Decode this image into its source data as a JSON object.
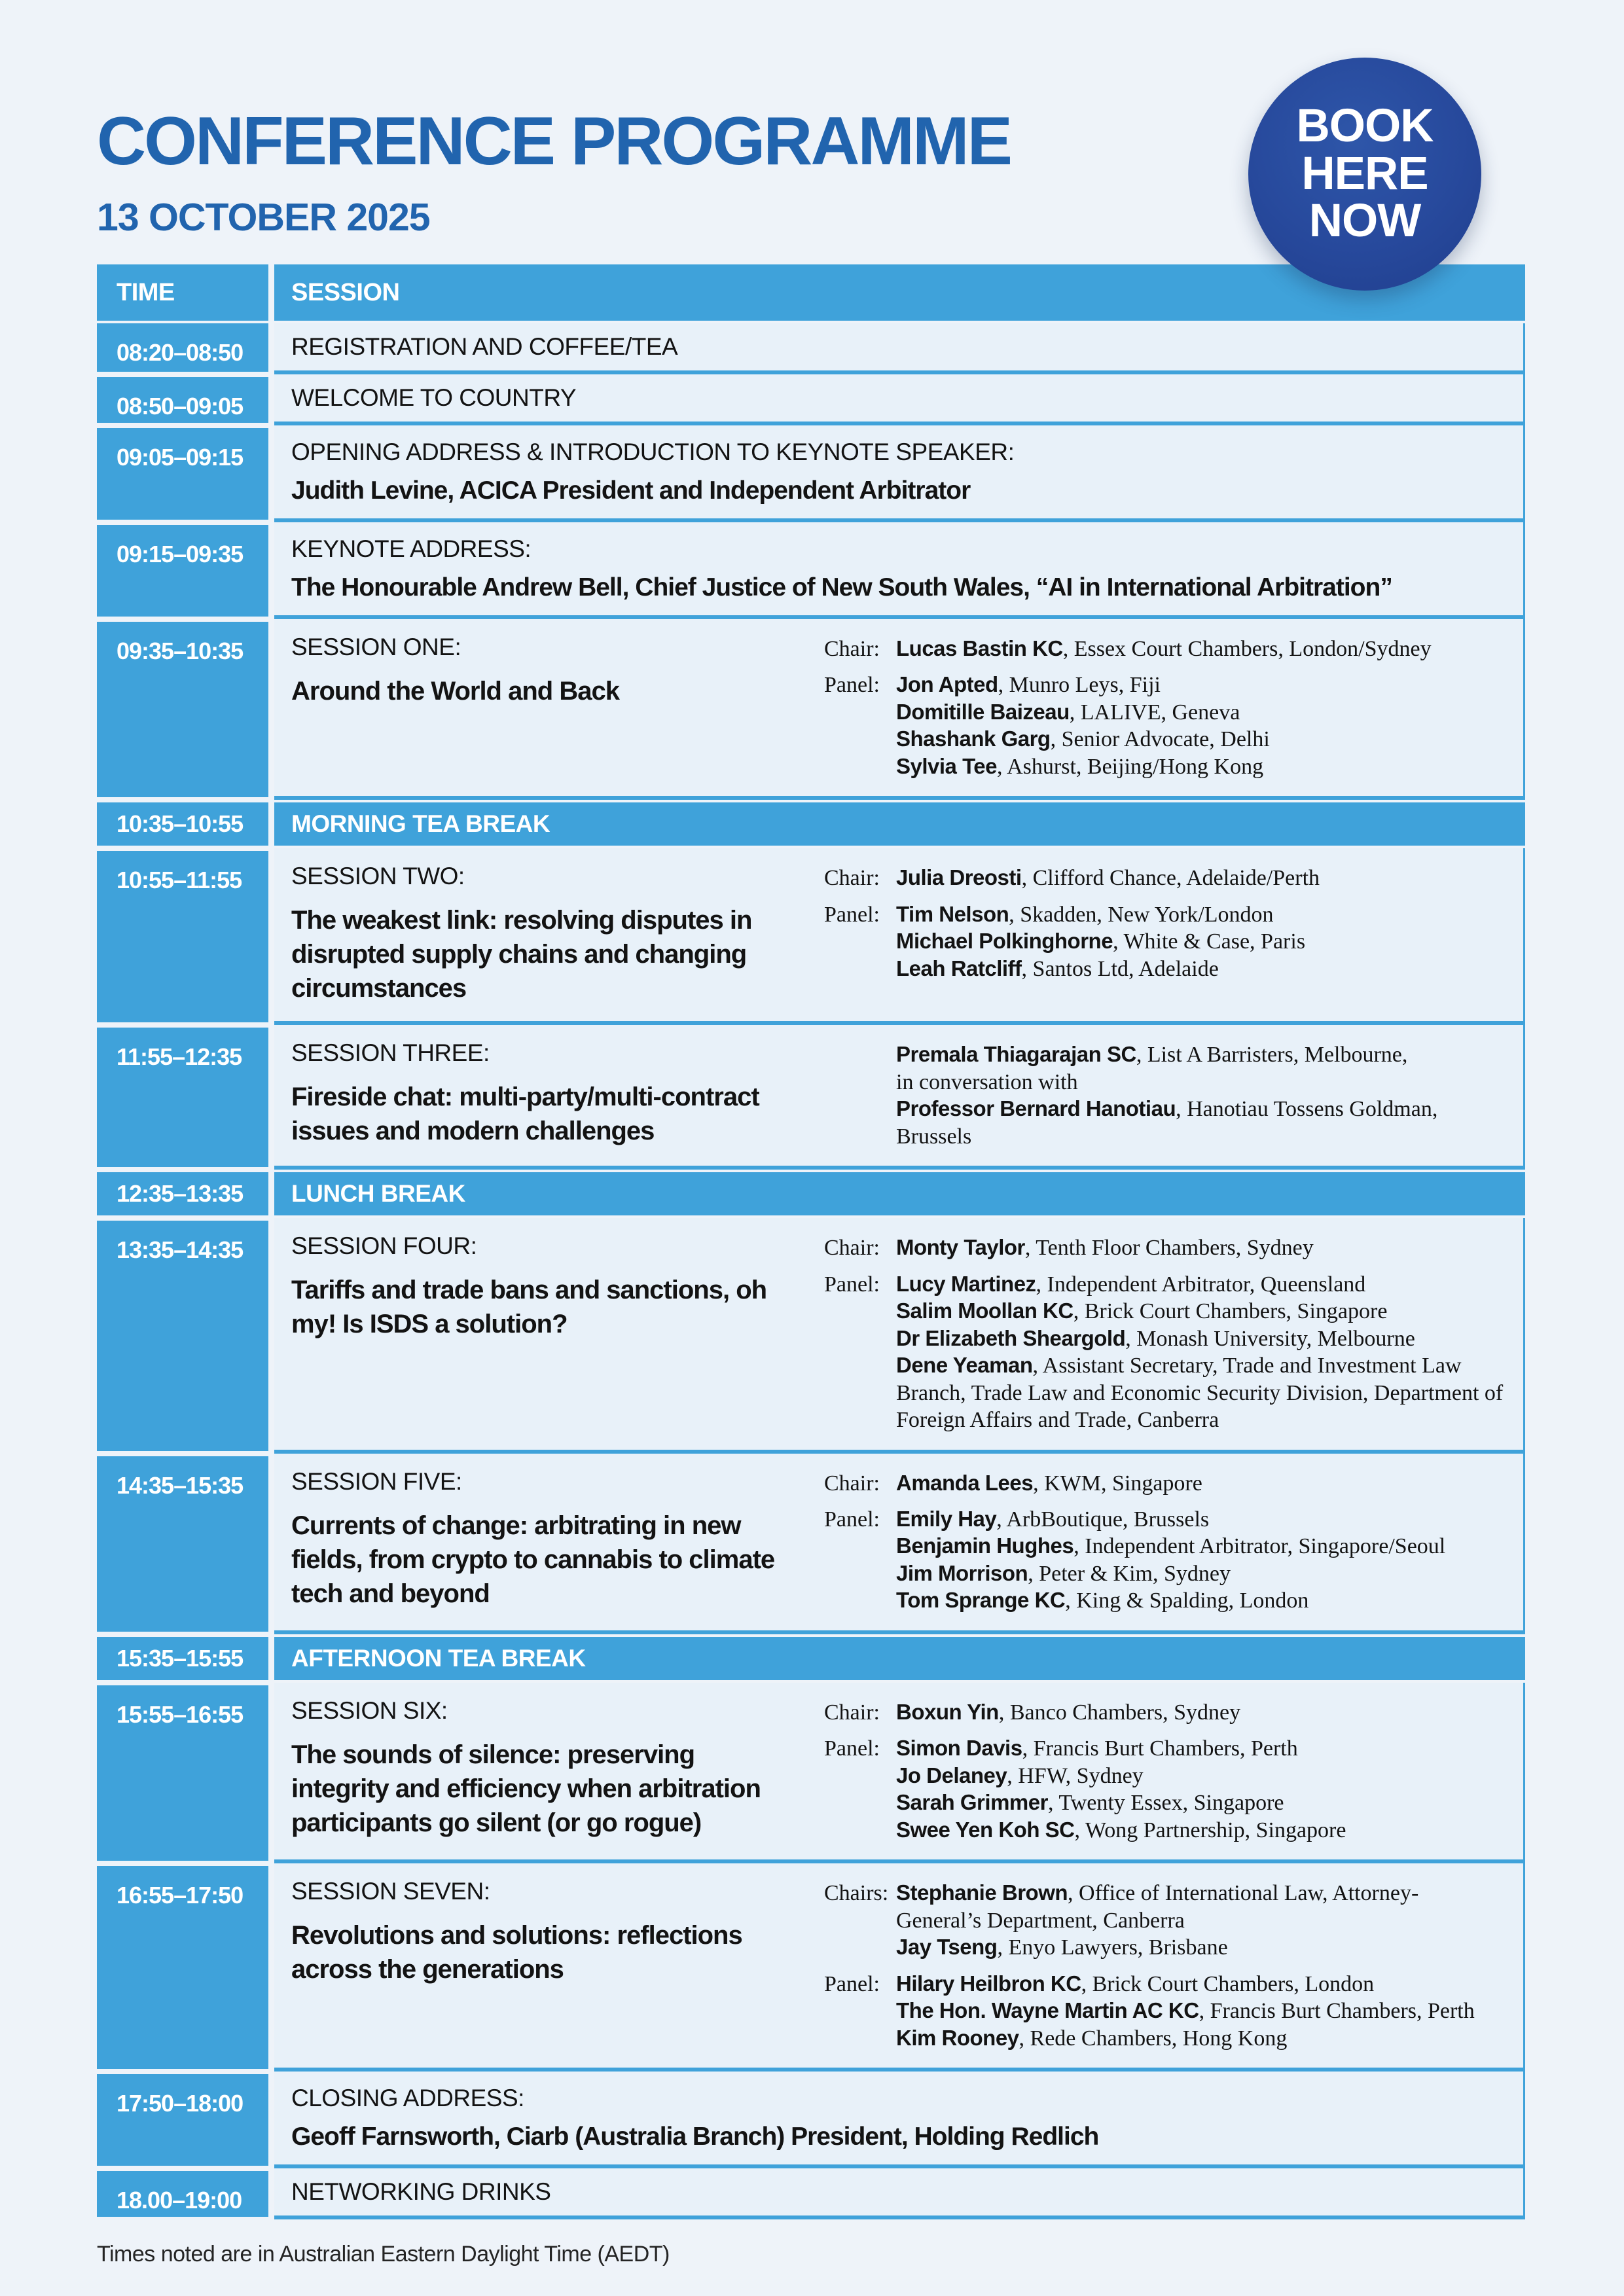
{
  "header": {
    "title": "CONFERENCE PROGRAMME",
    "date": "13 OCTOBER 2025",
    "badge_lines": [
      "BOOK",
      "HERE",
      "NOW"
    ]
  },
  "table": {
    "columns": [
      "TIME",
      "SESSION"
    ]
  },
  "rows": [
    {
      "type": "item",
      "time": "08:20–08:50",
      "label": "REGISTRATION AND COFFEE/TEA"
    },
    {
      "type": "item",
      "time": "08:50–09:05",
      "label": "WELCOME TO COUNTRY"
    },
    {
      "type": "item2",
      "time": "09:05–09:15",
      "label": "OPENING ADDRESS & INTRODUCTION TO KEYNOTE SPEAKER:",
      "bold": "Judith Levine, ACICA President and Independent Arbitrator"
    },
    {
      "type": "item2",
      "time": "09:15–09:35",
      "label": "KEYNOTE ADDRESS:",
      "bold": "The Honourable Andrew Bell, Chief Justice of New South Wales, “AI in International Arbitration”"
    },
    {
      "type": "session",
      "time": "09:35–10:35",
      "label": "SESSION ONE:",
      "title": "Around the World and Back",
      "groups": [
        {
          "label": "Chair:",
          "entries": [
            [
              {
                "b": "Lucas Bastin KC"
              },
              {
                "t": ", Essex Court Chambers, London/Sydney"
              }
            ]
          ]
        },
        {
          "label": "Panel:",
          "entries": [
            [
              {
                "b": "Jon Apted"
              },
              {
                "t": ", Munro Leys, Fiji"
              }
            ],
            [
              {
                "b": "Domitille Baizeau"
              },
              {
                "t": ", LALIVE, Geneva"
              }
            ],
            [
              {
                "b": "Shashank Garg"
              },
              {
                "t": ", Senior Advocate, Delhi"
              }
            ],
            [
              {
                "b": "Sylvia Tee"
              },
              {
                "t": ", Ashurst, Beijing/Hong Kong"
              }
            ]
          ]
        }
      ]
    },
    {
      "type": "break",
      "time": "10:35–10:55",
      "label": "MORNING TEA BREAK"
    },
    {
      "type": "session",
      "time": "10:55–11:55",
      "label": "SESSION TWO:",
      "title": "The weakest link: resolving disputes in disrupted supply chains and changing circumstances",
      "groups": [
        {
          "label": "Chair:",
          "entries": [
            [
              {
                "b": "Julia Dreosti"
              },
              {
                "t": ", Clifford Chance, Adelaide/Perth"
              }
            ]
          ]
        },
        {
          "label": "Panel:",
          "entries": [
            [
              {
                "b": "Tim Nelson"
              },
              {
                "t": ", Skadden, New York/London"
              }
            ],
            [
              {
                "b": "Michael Polkinghorne"
              },
              {
                "t": ", White & Case, Paris"
              }
            ],
            [
              {
                "b": "Leah Ratcliff"
              },
              {
                "t": ", Santos Ltd, Adelaide"
              }
            ]
          ]
        }
      ]
    },
    {
      "type": "session",
      "time": "11:55–12:35",
      "label": "SESSION THREE:",
      "title": "Fireside chat: multi-party/multi-contract issues and modern challenges",
      "groups": [
        {
          "label": "",
          "entries": [
            [
              {
                "b": "Premala Thiagarajan SC"
              },
              {
                "t": ", List A Barristers, Melbourne,"
              }
            ],
            [
              {
                "t": "in conversation with"
              }
            ],
            [
              {
                "b": "Professor Bernard Hanotiau"
              },
              {
                "t": ", Hanotiau Tossens Goldman, Brussels"
              }
            ]
          ]
        }
      ]
    },
    {
      "type": "break",
      "time": "12:35–13:35",
      "label": "LUNCH BREAK"
    },
    {
      "type": "session",
      "time": "13:35–14:35",
      "label": "SESSION FOUR:",
      "title": "Tariffs and trade bans and sanctions, oh my! Is ISDS a solution?",
      "groups": [
        {
          "label": "Chair:",
          "entries": [
            [
              {
                "b": "Monty Taylor"
              },
              {
                "t": ", Tenth Floor Chambers, Sydney"
              }
            ]
          ]
        },
        {
          "label": "Panel:",
          "entries": [
            [
              {
                "b": "Lucy Martinez"
              },
              {
                "t": ", Independent Arbitrator, Queensland"
              }
            ],
            [
              {
                "b": "Salim Moollan KC"
              },
              {
                "t": ", Brick Court Chambers, Singapore"
              }
            ],
            [
              {
                "b": "Dr Elizabeth Sheargold"
              },
              {
                "t": ", Monash University, Melbourne"
              }
            ],
            [
              {
                "b": "Dene Yeaman"
              },
              {
                "t": ", Assistant Secretary, Trade and Investment Law Branch, Trade Law and Economic Security Division, Department of Foreign Affairs and Trade, Canberra"
              }
            ]
          ]
        }
      ]
    },
    {
      "type": "session",
      "time": "14:35–15:35",
      "label": "SESSION FIVE:",
      "title": "Currents of change: arbitrating in new fields, from crypto to cannabis to climate tech and beyond",
      "groups": [
        {
          "label": "Chair:",
          "entries": [
            [
              {
                "b": "Amanda Lees"
              },
              {
                "t": ", KWM, Singapore"
              }
            ]
          ]
        },
        {
          "label": "Panel:",
          "entries": [
            [
              {
                "b": "Emily Hay"
              },
              {
                "t": ", ArbBoutique, Brussels"
              }
            ],
            [
              {
                "b": "Benjamin Hughes"
              },
              {
                "t": ", Independent Arbitrator, Singapore/Seoul"
              }
            ],
            [
              {
                "b": "Jim Morrison"
              },
              {
                "t": ", Peter & Kim, Sydney"
              }
            ],
            [
              {
                "b": "Tom Sprange KC"
              },
              {
                "t": ", King & Spalding, London"
              }
            ]
          ]
        }
      ]
    },
    {
      "type": "break",
      "time": "15:35–15:55",
      "label": "AFTERNOON TEA BREAK"
    },
    {
      "type": "session",
      "time": "15:55–16:55",
      "label": "SESSION SIX:",
      "title": "The sounds of silence: preserving integrity and efficiency when arbitration participants go silent (or go rogue)",
      "groups": [
        {
          "label": "Chair:",
          "entries": [
            [
              {
                "b": "Boxun Yin"
              },
              {
                "t": ", Banco Chambers, Sydney"
              }
            ]
          ]
        },
        {
          "label": "Panel:",
          "entries": [
            [
              {
                "b": "Simon Davis"
              },
              {
                "t": ", Francis Burt Chambers, Perth"
              }
            ],
            [
              {
                "b": "Jo Delaney"
              },
              {
                "t": ", HFW, Sydney"
              }
            ],
            [
              {
                "b": "Sarah Grimmer"
              },
              {
                "t": ", Twenty Essex, Singapore"
              }
            ],
            [
              {
                "b": "Swee Yen Koh SC"
              },
              {
                "t": ", Wong Partnership, Singapore"
              }
            ]
          ]
        }
      ]
    },
    {
      "type": "session",
      "time": "16:55–17:50",
      "label": "SESSION SEVEN:",
      "title": "Revolutions and solutions: reflections across the generations",
      "groups": [
        {
          "label": "Chairs:",
          "entries": [
            [
              {
                "b": "Stephanie Brown"
              },
              {
                "t": ", Office of International Law, Attorney-General’s Department, Canberra"
              }
            ],
            [
              {
                "b": "Jay Tseng"
              },
              {
                "t": ", Enyo Lawyers, Brisbane"
              }
            ]
          ]
        },
        {
          "label": "Panel:",
          "entries": [
            [
              {
                "b": "Hilary Heilbron KC"
              },
              {
                "t": ", Brick Court Chambers, London"
              }
            ],
            [
              {
                "b": "The Hon. Wayne Martin AC KC"
              },
              {
                "t": ", Francis Burt Chambers, Perth"
              }
            ],
            [
              {
                "b": "Kim Rooney"
              },
              {
                "t": ", Rede Chambers, Hong Kong"
              }
            ]
          ]
        }
      ]
    },
    {
      "type": "item2",
      "time": "17:50–18:00",
      "label": "CLOSING ADDRESS:",
      "bold": "Geoff Farnsworth, Ciarb (Australia Branch) President, Holding Redlich"
    },
    {
      "type": "item",
      "time": "18.00–19:00",
      "label": "NETWORKING DRINKS"
    }
  ],
  "footer": {
    "note": "Times noted are in Australian Eastern Daylight Time (AEDT)"
  },
  "colors": {
    "accent_blue": "#3fa2da",
    "title_blue": "#2164ae",
    "badge_navy": "#27499c",
    "cell_background": "#e8f1f9",
    "page_background": "#eef3f9"
  }
}
